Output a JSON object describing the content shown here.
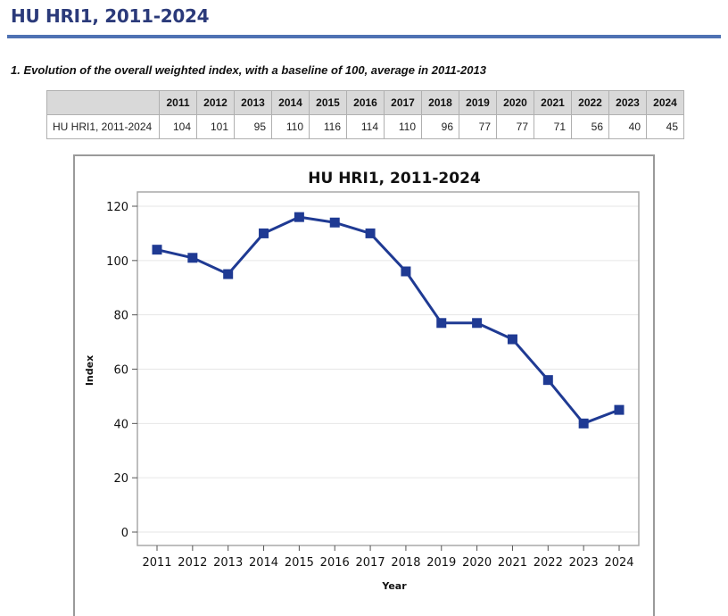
{
  "page": {
    "title": "HU HRI1, 2011-2024",
    "section_caption": "1. Evolution of the overall weighted index, with a baseline of 100, average in 2011-2013"
  },
  "table": {
    "row_label": "HU HRI1, 2011-2024",
    "years": [
      "2011",
      "2012",
      "2013",
      "2014",
      "2015",
      "2016",
      "2017",
      "2018",
      "2019",
      "2020",
      "2021",
      "2022",
      "2023",
      "2024"
    ],
    "values": [
      "104",
      "101",
      "95",
      "110",
      "116",
      "114",
      "110",
      "96",
      "77",
      "77",
      "71",
      "56",
      "40",
      "45"
    ]
  },
  "colors": {
    "series": "#1f3a93",
    "title_rule": "#4f72b3",
    "header_bg": "#d9d9d9"
  },
  "chart_data": {
    "type": "line",
    "title": "HU HRI1, 2011-2024",
    "xlabel": "Year",
    "ylabel": "Index",
    "x": [
      "2011",
      "2012",
      "2013",
      "2014",
      "2015",
      "2016",
      "2017",
      "2018",
      "2019",
      "2020",
      "2021",
      "2022",
      "2023",
      "2024"
    ],
    "series": [
      {
        "values": [
          104,
          101,
          95,
          110,
          116,
          114,
          110,
          96,
          77,
          77,
          71,
          56,
          40,
          45
        ]
      }
    ],
    "ylim": [
      0,
      120
    ],
    "yticks": [
      0,
      20,
      40,
      60,
      80,
      100,
      120
    ],
    "grid": true,
    "marker": "square"
  }
}
